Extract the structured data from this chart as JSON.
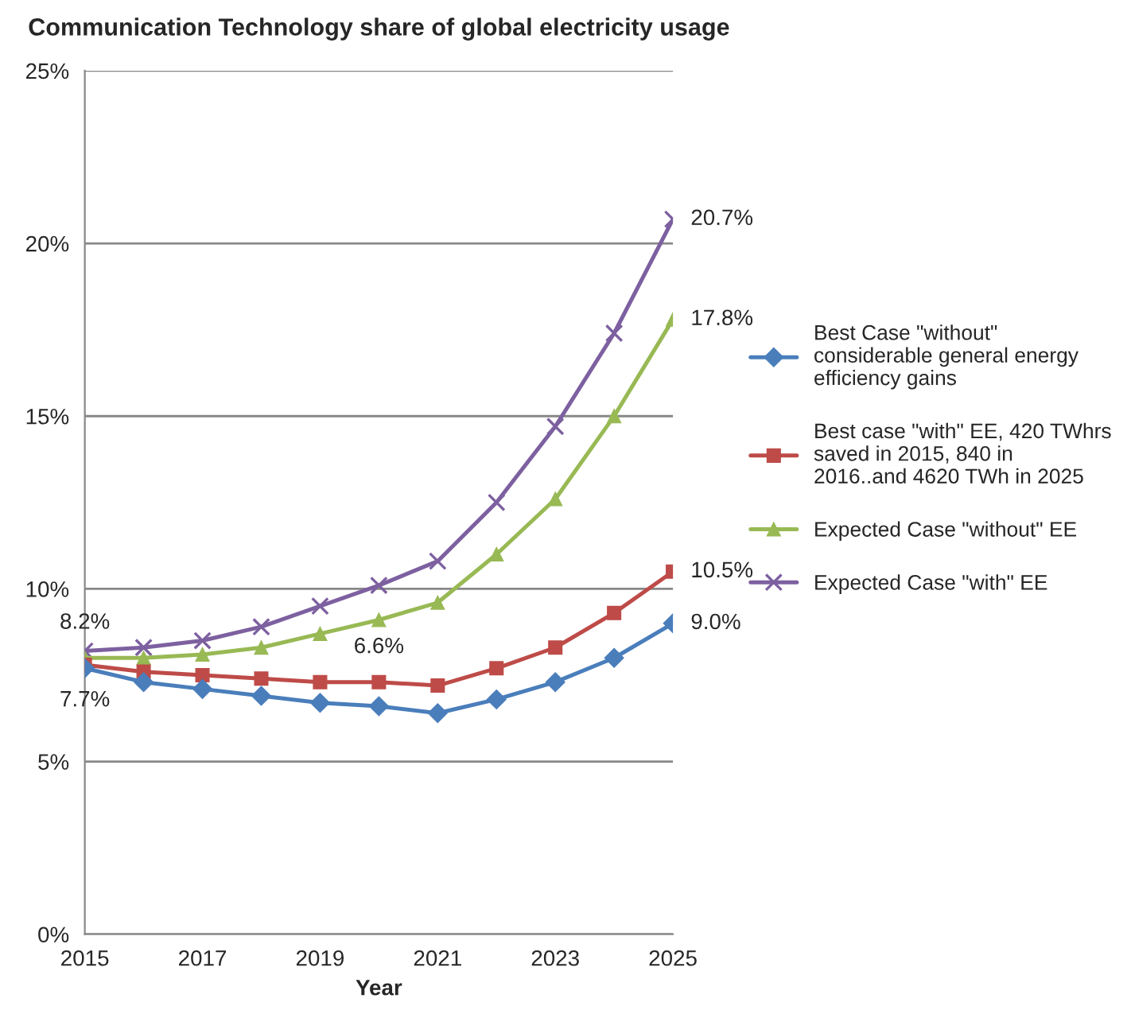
{
  "chart_data": {
    "type": "line",
    "title": "Communication Technology share of global electricity usage",
    "xlabel": "Year",
    "x": [
      2015,
      2016,
      2017,
      2018,
      2019,
      2020,
      2021,
      2022,
      2023,
      2024,
      2025
    ],
    "series": [
      {
        "name": "Best Case \"without\" considerable general energy efficiency gains",
        "color": "#4a7ebb",
        "marker": "diamond",
        "values": [
          7.7,
          7.3,
          7.1,
          6.9,
          6.7,
          6.6,
          6.4,
          6.8,
          7.3,
          8.0,
          9.0
        ]
      },
      {
        "name": "Best case \"with\" EE, 420 TWhrs saved in 2015, 840 in 2016..and 4620 TWh in 2025",
        "color": "#be4b48",
        "marker": "square",
        "values": [
          7.8,
          7.6,
          7.5,
          7.4,
          7.3,
          7.3,
          7.2,
          7.7,
          8.3,
          9.3,
          10.5
        ]
      },
      {
        "name": "Expected Case \"without\" EE",
        "color": "#98b954",
        "marker": "triangle",
        "values": [
          8.0,
          8.0,
          8.1,
          8.3,
          8.7,
          9.1,
          9.6,
          11.0,
          12.6,
          15.0,
          17.8
        ]
      },
      {
        "name": "Expected Case \"with\" EE",
        "color": "#7d60a0",
        "marker": "cross",
        "values": [
          8.2,
          8.3,
          8.5,
          8.9,
          9.5,
          10.1,
          10.8,
          12.5,
          14.7,
          17.4,
          20.7
        ]
      }
    ],
    "annotations": [
      {
        "text": "8.2%",
        "x": 2015,
        "y": 8.2
      },
      {
        "text": "7.7%",
        "x": 2015,
        "y": 7.7
      },
      {
        "text": "6.6%",
        "x": 2020,
        "y": 6.6
      },
      {
        "text": "20.7%",
        "x": 2025,
        "y": 20.7
      },
      {
        "text": "17.8%",
        "x": 2025,
        "y": 17.8
      },
      {
        "text": "10.5%",
        "x": 2025,
        "y": 10.5
      },
      {
        "text": "9.0%",
        "x": 2025,
        "y": 9.0
      }
    ],
    "xlim": [
      2015,
      2025
    ],
    "xticks": [
      2015,
      2017,
      2019,
      2021,
      2023,
      2025
    ],
    "ylim": [
      0,
      25
    ],
    "yticks": [
      {
        "value": 0,
        "label": "0%"
      },
      {
        "value": 5,
        "label": "5%"
      },
      {
        "value": 10,
        "label": "10%"
      },
      {
        "value": 15,
        "label": "15%"
      },
      {
        "value": 20,
        "label": "20%"
      },
      {
        "value": 25,
        "label": "25%"
      }
    ],
    "grid": "y",
    "legend": "right",
    "line_style": "solid"
  }
}
